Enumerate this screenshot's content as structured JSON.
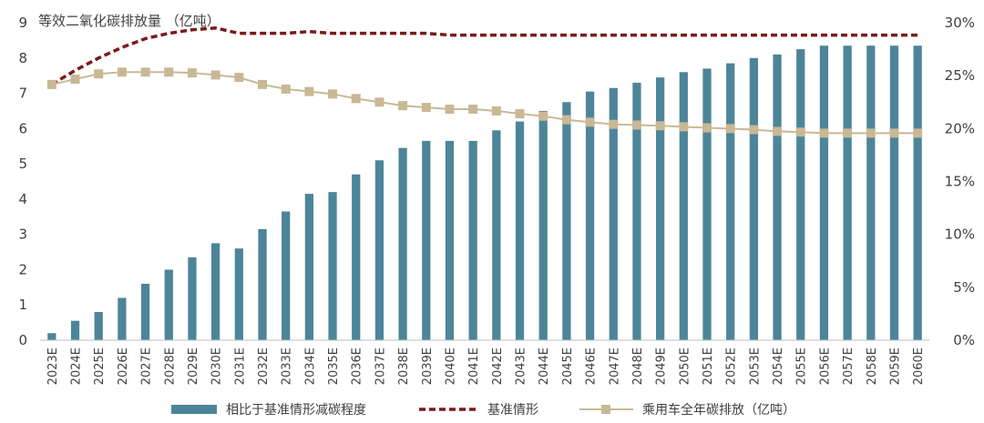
{
  "chart_data": {
    "type": "bar+line",
    "title": "等效二氧化碳排放量 （亿吨）",
    "categories": [
      "2023E",
      "2024E",
      "2025E",
      "2026E",
      "2027E",
      "2028E",
      "2029E",
      "2030E",
      "2031E",
      "2032E",
      "2033E",
      "2034E",
      "2035E",
      "2036E",
      "2037E",
      "2038E",
      "2039E",
      "2040E",
      "2041E",
      "2042E",
      "2043E",
      "2044E",
      "2045E",
      "2046E",
      "2047E",
      "2048E",
      "2049E",
      "2050E",
      "2051E",
      "2052E",
      "2053E",
      "2054E",
      "2055E",
      "2056E",
      "2057E",
      "2058E",
      "2059E",
      "2060E"
    ],
    "left_axis": {
      "ylim": [
        0,
        9
      ],
      "ticks": [
        "0",
        "1",
        "2",
        "3",
        "4",
        "5",
        "6",
        "7",
        "8",
        "9"
      ]
    },
    "right_axis": {
      "ylim": [
        0,
        30
      ],
      "ticks": [
        "0%",
        "5%",
        "10%",
        "15%",
        "20%",
        "25%",
        "30%"
      ]
    },
    "series": [
      {
        "name": "相比于基准情形减碳程度",
        "kind": "bar",
        "axis": "left",
        "color": "#4d8598",
        "values": [
          0.2,
          0.55,
          0.8,
          1.2,
          1.6,
          2.0,
          2.35,
          2.75,
          2.6,
          3.15,
          3.65,
          4.15,
          4.2,
          4.7,
          5.1,
          5.45,
          5.65,
          5.65,
          5.65,
          5.95,
          6.2,
          6.5,
          6.75,
          7.05,
          7.15,
          7.3,
          7.45,
          7.6,
          7.7,
          7.85,
          8.0,
          8.1,
          8.25,
          8.35,
          8.35,
          8.35,
          8.35,
          8.35
        ]
      },
      {
        "name": "基准情形",
        "kind": "line-dashed",
        "axis": "left",
        "color": "#7b1a1a",
        "values": [
          7.25,
          7.65,
          8.0,
          8.3,
          8.55,
          8.7,
          8.8,
          8.85,
          8.7,
          8.7,
          8.7,
          8.75,
          8.7,
          8.7,
          8.7,
          8.7,
          8.7,
          8.65,
          8.65,
          8.65,
          8.65,
          8.65,
          8.65,
          8.65,
          8.65,
          8.65,
          8.65,
          8.65,
          8.65,
          8.65,
          8.65,
          8.65,
          8.65,
          8.65,
          8.65,
          8.65,
          8.65,
          8.65
        ]
      },
      {
        "name": "乘用车全年碳排放（亿吨）",
        "kind": "line-marker",
        "axis": "left",
        "color": "#c9b896",
        "values": [
          7.25,
          7.4,
          7.55,
          7.6,
          7.6,
          7.6,
          7.58,
          7.52,
          7.45,
          7.25,
          7.12,
          7.05,
          6.98,
          6.85,
          6.75,
          6.65,
          6.6,
          6.55,
          6.55,
          6.5,
          6.42,
          6.35,
          6.25,
          6.18,
          6.12,
          6.1,
          6.08,
          6.05,
          6.02,
          6.0,
          5.97,
          5.92,
          5.9,
          5.87,
          5.87,
          5.87,
          5.87,
          5.87
        ]
      }
    ],
    "legend": {
      "placement": "bottom"
    }
  }
}
